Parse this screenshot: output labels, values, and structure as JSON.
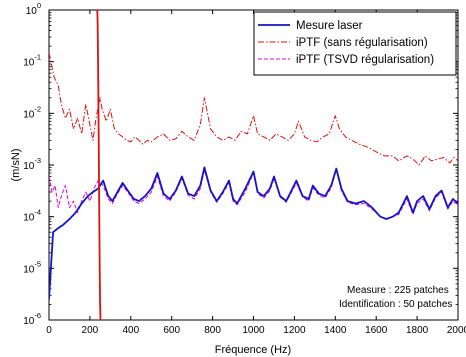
{
  "chart_data": {
    "type": "line",
    "xlabel": "Fréquence (Hz)",
    "ylabel": "(m/sN)",
    "xlim": [
      0,
      2000
    ],
    "ylim": [
      1e-06,
      1
    ],
    "yscale": "log",
    "x_ticks": [
      0,
      200,
      400,
      600,
      800,
      1000,
      1200,
      1400,
      1600,
      1800,
      2000
    ],
    "x_tick_labels": [
      "0",
      "200",
      "400",
      "600",
      "800",
      "1000",
      "1200",
      "1400",
      "1600",
      "1800",
      "2000"
    ],
    "y_ticks": [
      1e-06,
      1e-05,
      0.0001,
      0.001,
      0.01,
      0.1,
      1
    ],
    "y_tick_labels": [
      {
        "base": "10",
        "exp": "-6"
      },
      {
        "base": "10",
        "exp": "-5"
      },
      {
        "base": "10",
        "exp": "-4"
      },
      {
        "base": "10",
        "exp": "-3"
      },
      {
        "base": "10",
        "exp": "-2"
      },
      {
        "base": "10",
        "exp": "-1"
      },
      {
        "base": "10",
        "exp": "0"
      }
    ],
    "legend_position": "top-right",
    "series": [
      {
        "name": "Mesure laser",
        "color": "#1515c8",
        "style": "solid",
        "x": [
          0,
          20,
          45,
          70,
          100,
          130,
          160,
          190,
          215,
          240,
          265,
          290,
          310,
          335,
          360,
          390,
          415,
          440,
          470,
          500,
          530,
          560,
          590,
          620,
          650,
          680,
          710,
          740,
          760,
          790,
          820,
          850,
          880,
          900,
          920,
          960,
          1000,
          1020,
          1050,
          1080,
          1100,
          1130,
          1160,
          1190,
          1210,
          1240,
          1270,
          1290,
          1320,
          1350,
          1380,
          1405,
          1430,
          1460,
          1500,
          1540,
          1580,
          1620,
          1650,
          1680,
          1710,
          1750,
          1780,
          1800,
          1830,
          1860,
          1890,
          1920,
          1950,
          1975,
          2000
        ],
        "values": [
          2.5e-06,
          5e-05,
          6e-05,
          7e-05,
          9e-05,
          0.00012,
          0.00018,
          0.00025,
          0.0003,
          0.00035,
          0.0005,
          0.00025,
          0.0002,
          0.0003,
          0.00045,
          0.0003,
          0.00022,
          0.0002,
          0.00025,
          0.00035,
          0.0007,
          0.00028,
          0.00022,
          0.00032,
          0.0006,
          0.00028,
          0.00025,
          0.0004,
          0.0009,
          0.00032,
          0.0002,
          0.0003,
          0.0005,
          0.00022,
          0.00018,
          0.00035,
          0.00075,
          0.0003,
          0.00025,
          0.00035,
          0.0006,
          0.00025,
          0.0002,
          0.00035,
          0.0005,
          0.00025,
          0.00022,
          0.0004,
          0.00028,
          0.00025,
          0.0004,
          0.00085,
          0.00035,
          0.0002,
          0.00018,
          0.0002,
          0.00015,
          0.0001,
          9e-05,
          0.0001,
          0.00012,
          0.00025,
          0.00012,
          0.0002,
          0.00025,
          0.00014,
          0.00025,
          0.00032,
          0.00015,
          0.00022,
          0.00018
        ]
      },
      {
        "name": "iPTF (sans régularisation)",
        "color": "#e01010",
        "style": "dashdot",
        "x": [
          0,
          10,
          25,
          45,
          60,
          80,
          100,
          120,
          140,
          160,
          180,
          200,
          215,
          230,
          250,
          260,
          280,
          300,
          320,
          340,
          360,
          380,
          400,
          420,
          440,
          460,
          480,
          500,
          530,
          560,
          590,
          620,
          650,
          680,
          710,
          740,
          760,
          790,
          820,
          850,
          880,
          910,
          940,
          970,
          1000,
          1020,
          1050,
          1080,
          1110,
          1140,
          1170,
          1200,
          1220,
          1250,
          1280,
          1310,
          1340,
          1370,
          1400,
          1420,
          1450,
          1480,
          1520,
          1560,
          1600,
          1640,
          1680,
          1710,
          1750,
          1780,
          1810,
          1840,
          1870,
          1900,
          1930,
          1960,
          1980,
          2000
        ],
        "values": [
          0.15,
          0.1,
          0.05,
          0.035,
          0.015,
          0.008,
          0.012,
          0.005,
          0.008,
          0.004,
          0.015,
          0.006,
          0.003,
          0.008,
          0.02,
          0.012,
          0.007,
          0.012,
          0.005,
          0.004,
          0.0035,
          0.003,
          0.0028,
          0.0035,
          0.003,
          0.0025,
          0.003,
          0.0028,
          0.0035,
          0.004,
          0.003,
          0.0032,
          0.0045,
          0.0035,
          0.003,
          0.006,
          0.02,
          0.005,
          0.0035,
          0.003,
          0.0035,
          0.003,
          0.0045,
          0.004,
          0.009,
          0.004,
          0.0035,
          0.003,
          0.004,
          0.0035,
          0.003,
          0.004,
          0.007,
          0.0035,
          0.003,
          0.0028,
          0.0035,
          0.004,
          0.009,
          0.005,
          0.0035,
          0.003,
          0.0025,
          0.0022,
          0.0018,
          0.0015,
          0.0015,
          0.0012,
          0.0015,
          0.0013,
          0.001,
          0.0015,
          0.0012,
          0.0013,
          0.0014,
          0.0011,
          0.0014,
          0.0012
        ]
      },
      {
        "name": "iPTF (TSVD régularisation)",
        "color": "#e000e0",
        "style": "dashed",
        "x": [
          0,
          15,
          30,
          45,
          60,
          80,
          100,
          120,
          140,
          160,
          180,
          200,
          220,
          240,
          265,
          290,
          310,
          335,
          360,
          390,
          415,
          440,
          470,
          500,
          530,
          560,
          590,
          620,
          650,
          680,
          710,
          740,
          760,
          790,
          820,
          850,
          880,
          900,
          920,
          960,
          1000,
          1020,
          1050,
          1080,
          1100,
          1130,
          1160,
          1190,
          1210,
          1240,
          1270,
          1290,
          1320,
          1350,
          1380,
          1405,
          1430,
          1460,
          1500,
          1540,
          1580,
          1620,
          1650,
          1680,
          1710,
          1750,
          1780,
          1800,
          1830,
          1860,
          1890,
          1920,
          1950,
          1975,
          2000
        ],
        "values": [
          0.0006,
          0.0003,
          0.0004,
          0.00015,
          0.00025,
          0.0004,
          0.00015,
          0.0002,
          0.00012,
          0.0002,
          0.0003,
          0.0002,
          0.00035,
          0.0005,
          0.0004,
          0.00022,
          0.00018,
          0.00028,
          0.0004,
          0.00028,
          0.0002,
          0.00018,
          0.00022,
          0.0003,
          0.0006,
          0.00025,
          0.0002,
          0.0003,
          0.00055,
          0.00026,
          0.00022,
          0.00035,
          0.0008,
          0.0003,
          0.00019,
          0.00028,
          0.00045,
          0.0002,
          0.00017,
          0.0003,
          0.0007,
          0.00028,
          0.00023,
          0.00032,
          0.00055,
          0.00024,
          0.00019,
          0.00032,
          0.00045,
          0.00024,
          0.0002,
          0.00036,
          0.00026,
          0.00023,
          0.00036,
          0.0008,
          0.00032,
          0.00019,
          0.00017,
          0.00018,
          0.00014,
          0.0001,
          9e-05,
          0.0001,
          0.00011,
          0.00022,
          0.00011,
          0.00018,
          0.00022,
          0.00013,
          0.00023,
          0.0003,
          0.00014,
          0.0002,
          0.00017
        ]
      },
      {
        "color": "#e01010",
        "style": "solid",
        "x": [
          236,
          238,
          240,
          242,
          244,
          246,
          248,
          250,
          252
        ],
        "values": [
          1,
          0.5,
          0.08,
          0.01,
          0.001,
          0.0001,
          1e-05,
          2e-06,
          1e-06
        ]
      }
    ],
    "annotations": [
      "Measure : 225 patches",
      "Identification : 50 patches"
    ]
  }
}
